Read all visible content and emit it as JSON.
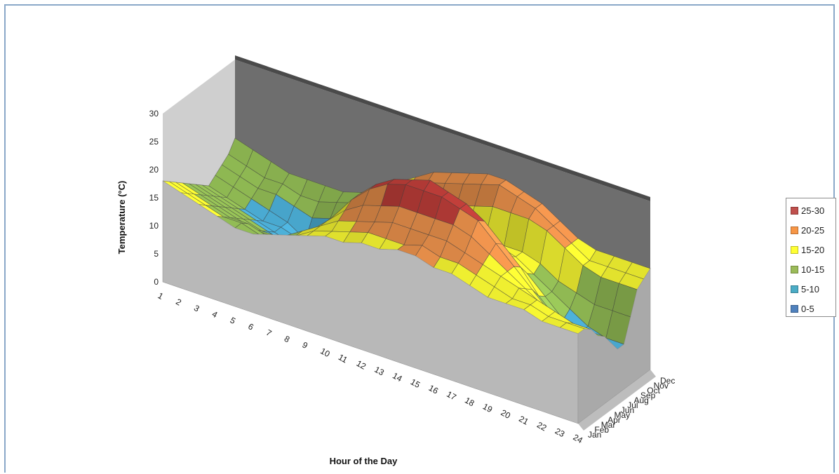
{
  "chart_data": {
    "type": "surface",
    "xlabel": "Hour of the Day",
    "ylabel": "",
    "zlabel": "Temperature (°C)",
    "x_categories": [
      "1",
      "2",
      "3",
      "4",
      "5",
      "6",
      "7",
      "8",
      "9",
      "10",
      "11",
      "12",
      "13",
      "14",
      "15",
      "16",
      "17",
      "18",
      "19",
      "20",
      "21",
      "22",
      "23",
      "24"
    ],
    "y_categories": [
      "Jan",
      "Feb",
      "Mar",
      "Apr",
      "May",
      "Jun",
      "Jul",
      "Aug",
      "Sep",
      "Oct",
      "Nov",
      "Dec"
    ],
    "z_ticks": [
      "0",
      "5",
      "10",
      "15",
      "20",
      "25",
      "30"
    ],
    "zlim": [
      0,
      30
    ],
    "legend": {
      "placement": "right",
      "items": [
        {
          "label": "25-30",
          "color": "#c0504d"
        },
        {
          "label": "20-25",
          "color": "#f79646"
        },
        {
          "label": "15-20",
          "color": "#ffff33"
        },
        {
          "label": "10-15",
          "color": "#9bbb59"
        },
        {
          "label": "5-10",
          "color": "#4bacc6"
        },
        {
          "label": "0-5",
          "color": "#4f81bd"
        }
      ]
    },
    "band_colors": {
      "0-5": "#4f6fd0",
      "5-10": "#4fb6e0",
      "10-15": "#98c458",
      "15-20": "#ffff33",
      "20-25": "#f3964e",
      "25-30": "#c8413c"
    },
    "series": [
      {
        "month": "Jan",
        "values": [
          18,
          17,
          16,
          15,
          14,
          14,
          15,
          16,
          17,
          18,
          18,
          19,
          19,
          20,
          20,
          19,
          19,
          18,
          17,
          17,
          17,
          16,
          16,
          16
        ]
      },
      {
        "month": "Feb",
        "values": [
          17,
          16,
          15,
          14,
          14,
          13,
          14,
          15,
          17,
          18,
          19,
          20,
          20,
          20,
          21,
          20,
          20,
          19,
          18,
          17,
          17,
          16,
          16,
          16
        ]
      },
      {
        "month": "Mar",
        "values": [
          16,
          15,
          14,
          13,
          13,
          12,
          13,
          15,
          17,
          19,
          20,
          21,
          22,
          22,
          22,
          22,
          21,
          20,
          19,
          18,
          17,
          16,
          15,
          15
        ]
      },
      {
        "month": "Apr",
        "values": [
          15,
          14,
          13,
          12,
          11,
          11,
          12,
          14,
          17,
          20,
          22,
          23,
          24,
          24,
          24,
          24,
          23,
          21,
          19,
          17,
          15,
          14,
          13,
          13
        ]
      },
      {
        "month": "May",
        "values": [
          14,
          13,
          12,
          11,
          10,
          10,
          11,
          13,
          17,
          21,
          24,
          26,
          27,
          27,
          27,
          26,
          25,
          22,
          19,
          16,
          13,
          12,
          12,
          12
        ]
      },
      {
        "month": "Jun",
        "values": [
          13,
          12,
          11,
          10,
          9,
          8,
          9,
          12,
          16,
          21,
          24,
          26,
          27,
          28,
          27,
          26,
          24,
          21,
          18,
          14,
          11,
          10,
          10,
          10
        ]
      },
      {
        "month": "Jul",
        "values": [
          12,
          11,
          10,
          9,
          8,
          7,
          8,
          11,
          15,
          20,
          22,
          23,
          24,
          24,
          24,
          23,
          21,
          18,
          16,
          13,
          10,
          9,
          8,
          8
        ]
      },
      {
        "month": "Aug",
        "values": [
          11,
          10,
          9,
          8,
          8,
          7,
          8,
          11,
          15,
          18,
          19,
          19,
          19,
          19,
          19,
          19,
          18,
          17,
          15,
          13,
          11,
          9,
          8,
          8
        ]
      },
      {
        "month": "Sep",
        "values": [
          12,
          11,
          10,
          9,
          8,
          6,
          7,
          10,
          14,
          17,
          18,
          18,
          18,
          18,
          18,
          18,
          17,
          17,
          16,
          14,
          13,
          12,
          12,
          12
        ]
      },
      {
        "month": "Oct",
        "values": [
          13,
          12,
          11,
          11,
          10,
          9,
          10,
          11,
          14,
          16,
          17,
          18,
          19,
          20,
          21,
          22,
          22,
          22,
          21,
          19,
          17,
          16,
          16,
          16
        ]
      },
      {
        "month": "Nov",
        "values": [
          14,
          13,
          12,
          12,
          11,
          11,
          12,
          13,
          15,
          17,
          19,
          21,
          22,
          23,
          24,
          25,
          24,
          23,
          21,
          19,
          17,
          17,
          17,
          17
        ]
      },
      {
        "month": "Dec",
        "values": [
          16,
          15,
          14,
          13,
          13,
          13,
          13,
          14,
          16,
          18,
          20,
          22,
          23,
          24,
          25,
          25,
          24,
          23,
          21,
          19,
          18,
          18,
          18,
          18
        ]
      }
    ]
  }
}
